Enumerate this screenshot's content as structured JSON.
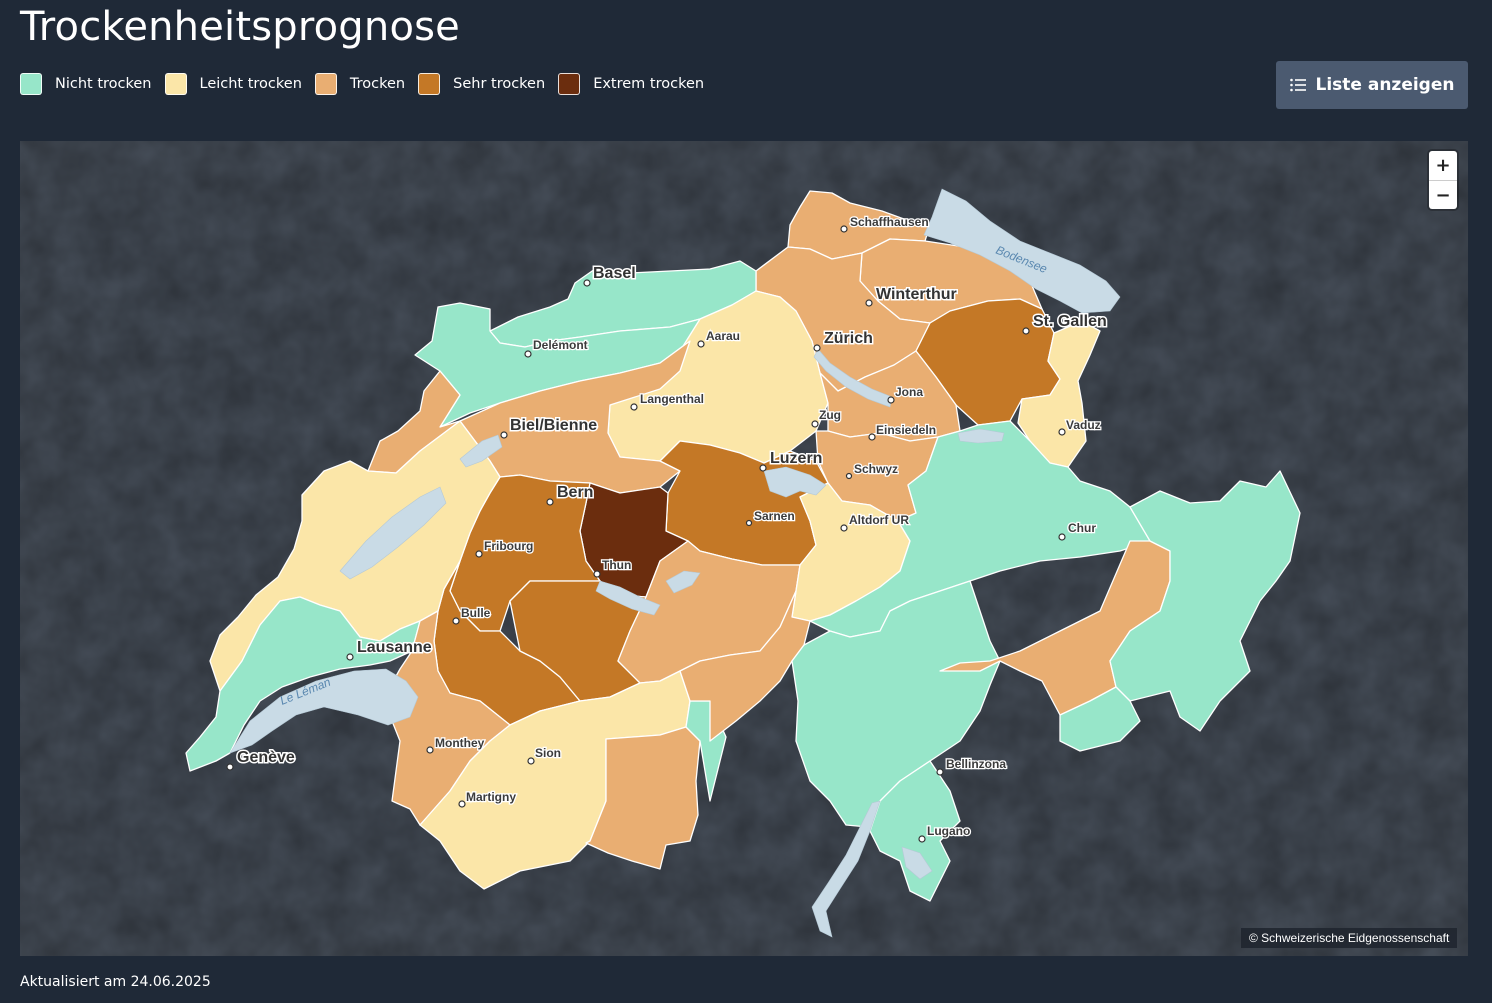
{
  "title": "Trockenheitsprognose",
  "legend": [
    {
      "label": "Nicht trocken",
      "color": "#97e6c9"
    },
    {
      "label": "Leicht trocken",
      "color": "#fbe6a8"
    },
    {
      "label": "Trocken",
      "color": "#e9ae72"
    },
    {
      "label": "Sehr trocken",
      "color": "#c47826"
    },
    {
      "label": "Extrem trocken",
      "color": "#6b2d0e"
    }
  ],
  "list_button": {
    "label": "Liste anzeigen",
    "icon": "list-icon"
  },
  "zoom": {
    "in_label": "+",
    "out_label": "−"
  },
  "attribution": "© Schweizerische Eidgenossenschaft",
  "updated": "Aktualisiert am 24.06.2025",
  "map": {
    "cities": [
      "Schaffhausen",
      "Basel",
      "Winterthur",
      "St. Gallen",
      "Delémont",
      "Aarau",
      "Zürich",
      "Langenthal",
      "Jona",
      "Biel/Bienne",
      "Zug",
      "Einsiedeln",
      "Vaduz",
      "Luzern",
      "Schwyz",
      "Bern",
      "Sarnen",
      "Altdorf UR",
      "Fribourg",
      "Chur",
      "Thun",
      "Bulle",
      "Lausanne",
      "Monthey",
      "Sion",
      "Genève",
      "Martigny",
      "Bellinzona",
      "Lugano"
    ],
    "lakes": [
      "Bodensee",
      "Le Léman"
    ]
  }
}
